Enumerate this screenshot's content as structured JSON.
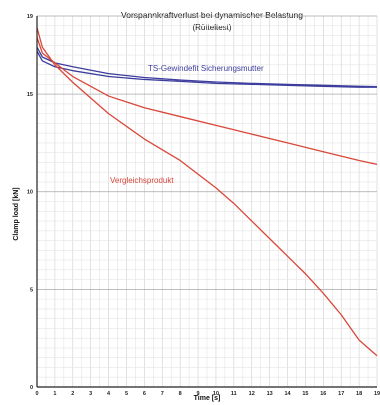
{
  "chart_data": {
    "type": "line",
    "title": "Vorspannkraftverlust bei dynamischer Belastung",
    "subtitle": "(Rütteltest)",
    "xlabel": "Time [s]",
    "ylabel": "Clamp load [kN]",
    "xlim": [
      0,
      19
    ],
    "ylim": [
      0,
      19
    ],
    "x_ticks": [
      0,
      1,
      2,
      3,
      4,
      5,
      6,
      7,
      8,
      9,
      10,
      11,
      12,
      13,
      14,
      15,
      16,
      17,
      18,
      19
    ],
    "y_ticks": [
      0,
      5,
      10,
      15,
      19
    ],
    "grid": true,
    "annotations": [
      {
        "text": "TS-Gewindefit Sicherungsmutter",
        "color": "#3d3d9e"
      },
      {
        "text": "Vergleichsprodukt",
        "color": "#d9473a"
      }
    ],
    "series": [
      {
        "group": "ts",
        "color": "#3d3d9e",
        "x": [
          0,
          0.3,
          1,
          2,
          4,
          6,
          8,
          10,
          12,
          14,
          16,
          18,
          19
        ],
        "y": [
          17.2,
          16.7,
          16.4,
          16.2,
          15.9,
          15.75,
          15.65,
          15.55,
          15.5,
          15.45,
          15.4,
          15.35,
          15.35
        ]
      },
      {
        "group": "ts",
        "color": "#3d3d9e",
        "x": [
          0,
          0.3,
          1,
          2,
          4,
          6,
          8,
          10,
          12,
          14,
          16,
          18,
          19
        ],
        "y": [
          17.4,
          16.9,
          16.6,
          16.4,
          16.05,
          15.85,
          15.72,
          15.62,
          15.55,
          15.5,
          15.45,
          15.4,
          15.38
        ]
      },
      {
        "group": "ref",
        "color": "#d9473a",
        "x": [
          0,
          0.3,
          1,
          2,
          3,
          4,
          6,
          8,
          10,
          12,
          14,
          16,
          18,
          19
        ],
        "y": [
          17.9,
          17.1,
          16.6,
          15.9,
          15.4,
          14.9,
          14.3,
          13.85,
          13.4,
          12.95,
          12.5,
          12.05,
          11.6,
          11.4
        ]
      },
      {
        "group": "ref",
        "color": "#d9473a",
        "x": [
          0,
          0.3,
          1,
          2,
          3,
          4,
          6,
          8,
          10,
          11,
          12,
          13,
          14,
          15,
          16,
          17,
          18,
          19
        ],
        "y": [
          18.4,
          17.4,
          16.5,
          15.6,
          14.8,
          14.0,
          12.7,
          11.6,
          10.2,
          9.4,
          8.5,
          7.6,
          6.7,
          5.8,
          4.8,
          3.7,
          2.4,
          1.6
        ]
      }
    ]
  }
}
